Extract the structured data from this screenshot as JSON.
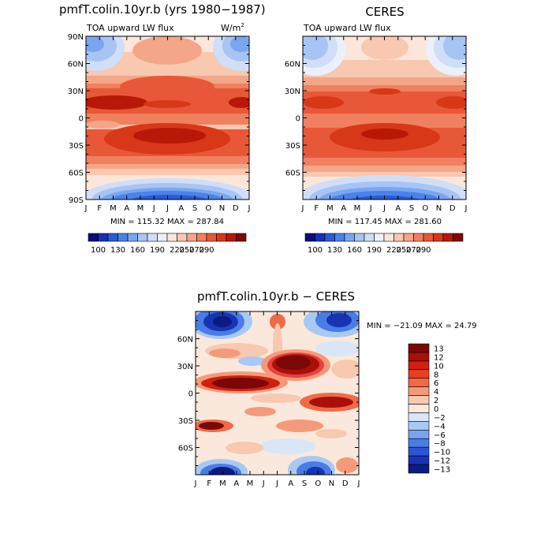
{
  "chart_data": [
    {
      "type": "heatmap",
      "title": "pmfT.colin.10yr.b (yrs 1980−1987)",
      "subtitle_left": "TOA upward LW flux",
      "units_base": "W/m",
      "units_exp": "2",
      "x_tick_labels": [
        "J",
        "F",
        "M",
        "A",
        "M",
        "J",
        "J",
        "A",
        "S",
        "O",
        "N",
        "D",
        "J"
      ],
      "y_tick_labels": [
        "90N",
        "60N",
        "30N",
        "0",
        "30S",
        "60S",
        "90S"
      ],
      "ylim": [
        -90,
        90
      ],
      "stats": "MIN = 115.32  MAX = 287.84",
      "colorbar_labels": [
        "100",
        "130",
        "160",
        "190",
        "220",
        "250",
        "270",
        "290"
      ]
    },
    {
      "type": "heatmap",
      "title": "CERES",
      "subtitle_left": "TOA upward LW flux",
      "x_tick_labels": [
        "J",
        "F",
        "M",
        "A",
        "M",
        "J",
        "J",
        "A",
        "S",
        "O",
        "N",
        "D",
        "J"
      ],
      "y_tick_labels": [
        "60N",
        "30N",
        "0",
        "30S",
        "60S"
      ],
      "ylim": [
        -90,
        90
      ],
      "stats": "MIN = 117.45  MAX = 281.60",
      "colorbar_labels": [
        "100",
        "130",
        "160",
        "190",
        "220",
        "250",
        "270",
        "290"
      ]
    },
    {
      "type": "heatmap",
      "title": "pmfT.colin.10yr.b − CERES",
      "x_tick_labels": [
        "J",
        "F",
        "M",
        "A",
        "M",
        "J",
        "J",
        "A",
        "S",
        "O",
        "N",
        "D",
        "J"
      ],
      "y_tick_labels": [
        "60N",
        "30N",
        "0",
        "30S",
        "60S"
      ],
      "ylim": [
        -90,
        90
      ],
      "stats": "MIN = −21.09  MAX =  24.79",
      "colorbar_labels": [
        "13",
        "12",
        "10",
        "8",
        "6",
        "4",
        "2",
        "0",
        "−2",
        "−4",
        "−6",
        "−8",
        "−10",
        "−12",
        "−13"
      ]
    }
  ],
  "colors": {
    "flux_scale": [
      "#0c0c7a",
      "#1630b8",
      "#2a5ad8",
      "#4a82e8",
      "#7aa6f0",
      "#a8c4f4",
      "#d0def8",
      "#ecf0fa",
      "#fce6dc",
      "#f8c8b0",
      "#f4a688",
      "#f08060",
      "#e85838",
      "#d83818",
      "#b81808",
      "#800808"
    ],
    "diff_scale": [
      "#7a0808",
      "#a81008",
      "#d02010",
      "#e84020",
      "#f06a48",
      "#f49a7a",
      "#f8c8b0",
      "#fbe8dc",
      "#d8e6f8",
      "#aac8f4",
      "#78a4ee",
      "#4a7ce6",
      "#2a56d6",
      "#1634b4",
      "#0c1a82"
    ]
  }
}
